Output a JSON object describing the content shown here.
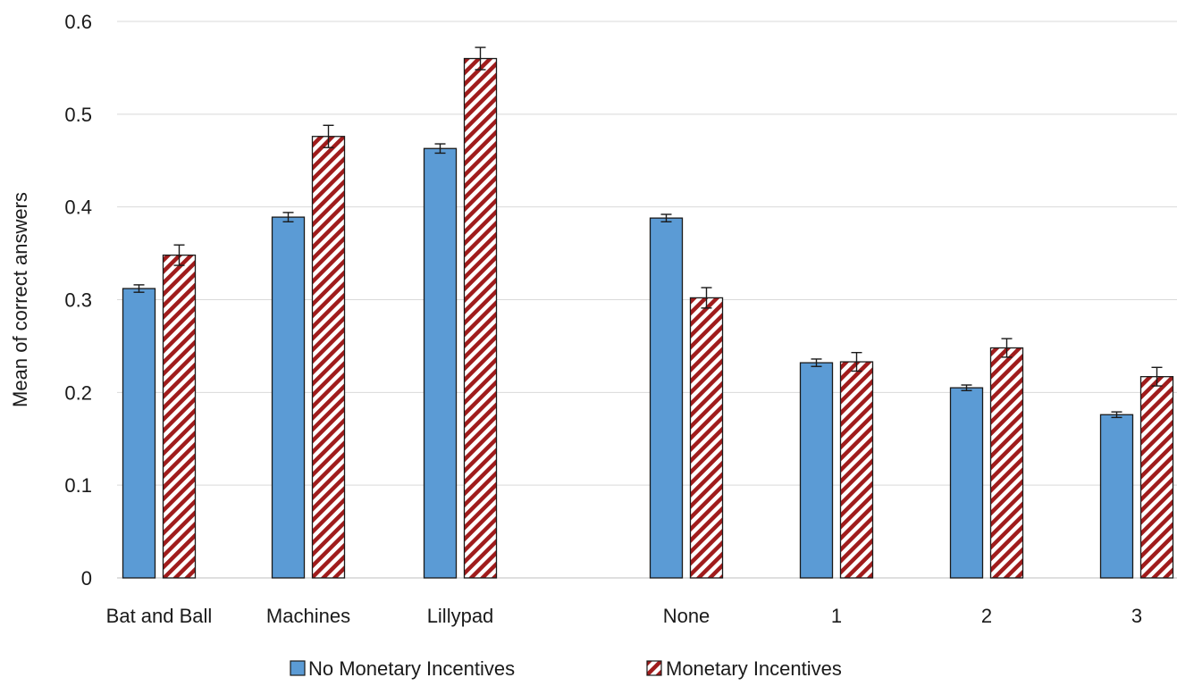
{
  "chart_data": {
    "type": "bar",
    "title": "",
    "xlabel": "",
    "ylabel": "Mean of correct answers",
    "ylim": [
      0,
      0.6
    ],
    "yticks": [
      "0",
      "0.1",
      "0.2",
      "0.3",
      "0.4",
      "0.5",
      "0.6"
    ],
    "grid": true,
    "legend_position": "bottom",
    "categories": [
      "Bat and Ball",
      "Machines",
      "Lillypad",
      "None",
      "1",
      "2",
      "3"
    ],
    "series": [
      {
        "name": "No Monetary Incentives",
        "color": "#5b9bd5",
        "pattern": "solid",
        "values": [
          0.312,
          0.389,
          0.463,
          0.388,
          0.232,
          0.205,
          0.176
        ],
        "errors": [
          0.004,
          0.005,
          0.005,
          0.004,
          0.004,
          0.003,
          0.003
        ]
      },
      {
        "name": "Monetary Incentives",
        "color": "#a01c1c",
        "pattern": "diagonal-stripes",
        "values": [
          0.348,
          0.476,
          0.56,
          0.302,
          0.233,
          0.248,
          0.217
        ],
        "errors": [
          0.011,
          0.012,
          0.012,
          0.011,
          0.01,
          0.01,
          0.01
        ]
      }
    ]
  }
}
